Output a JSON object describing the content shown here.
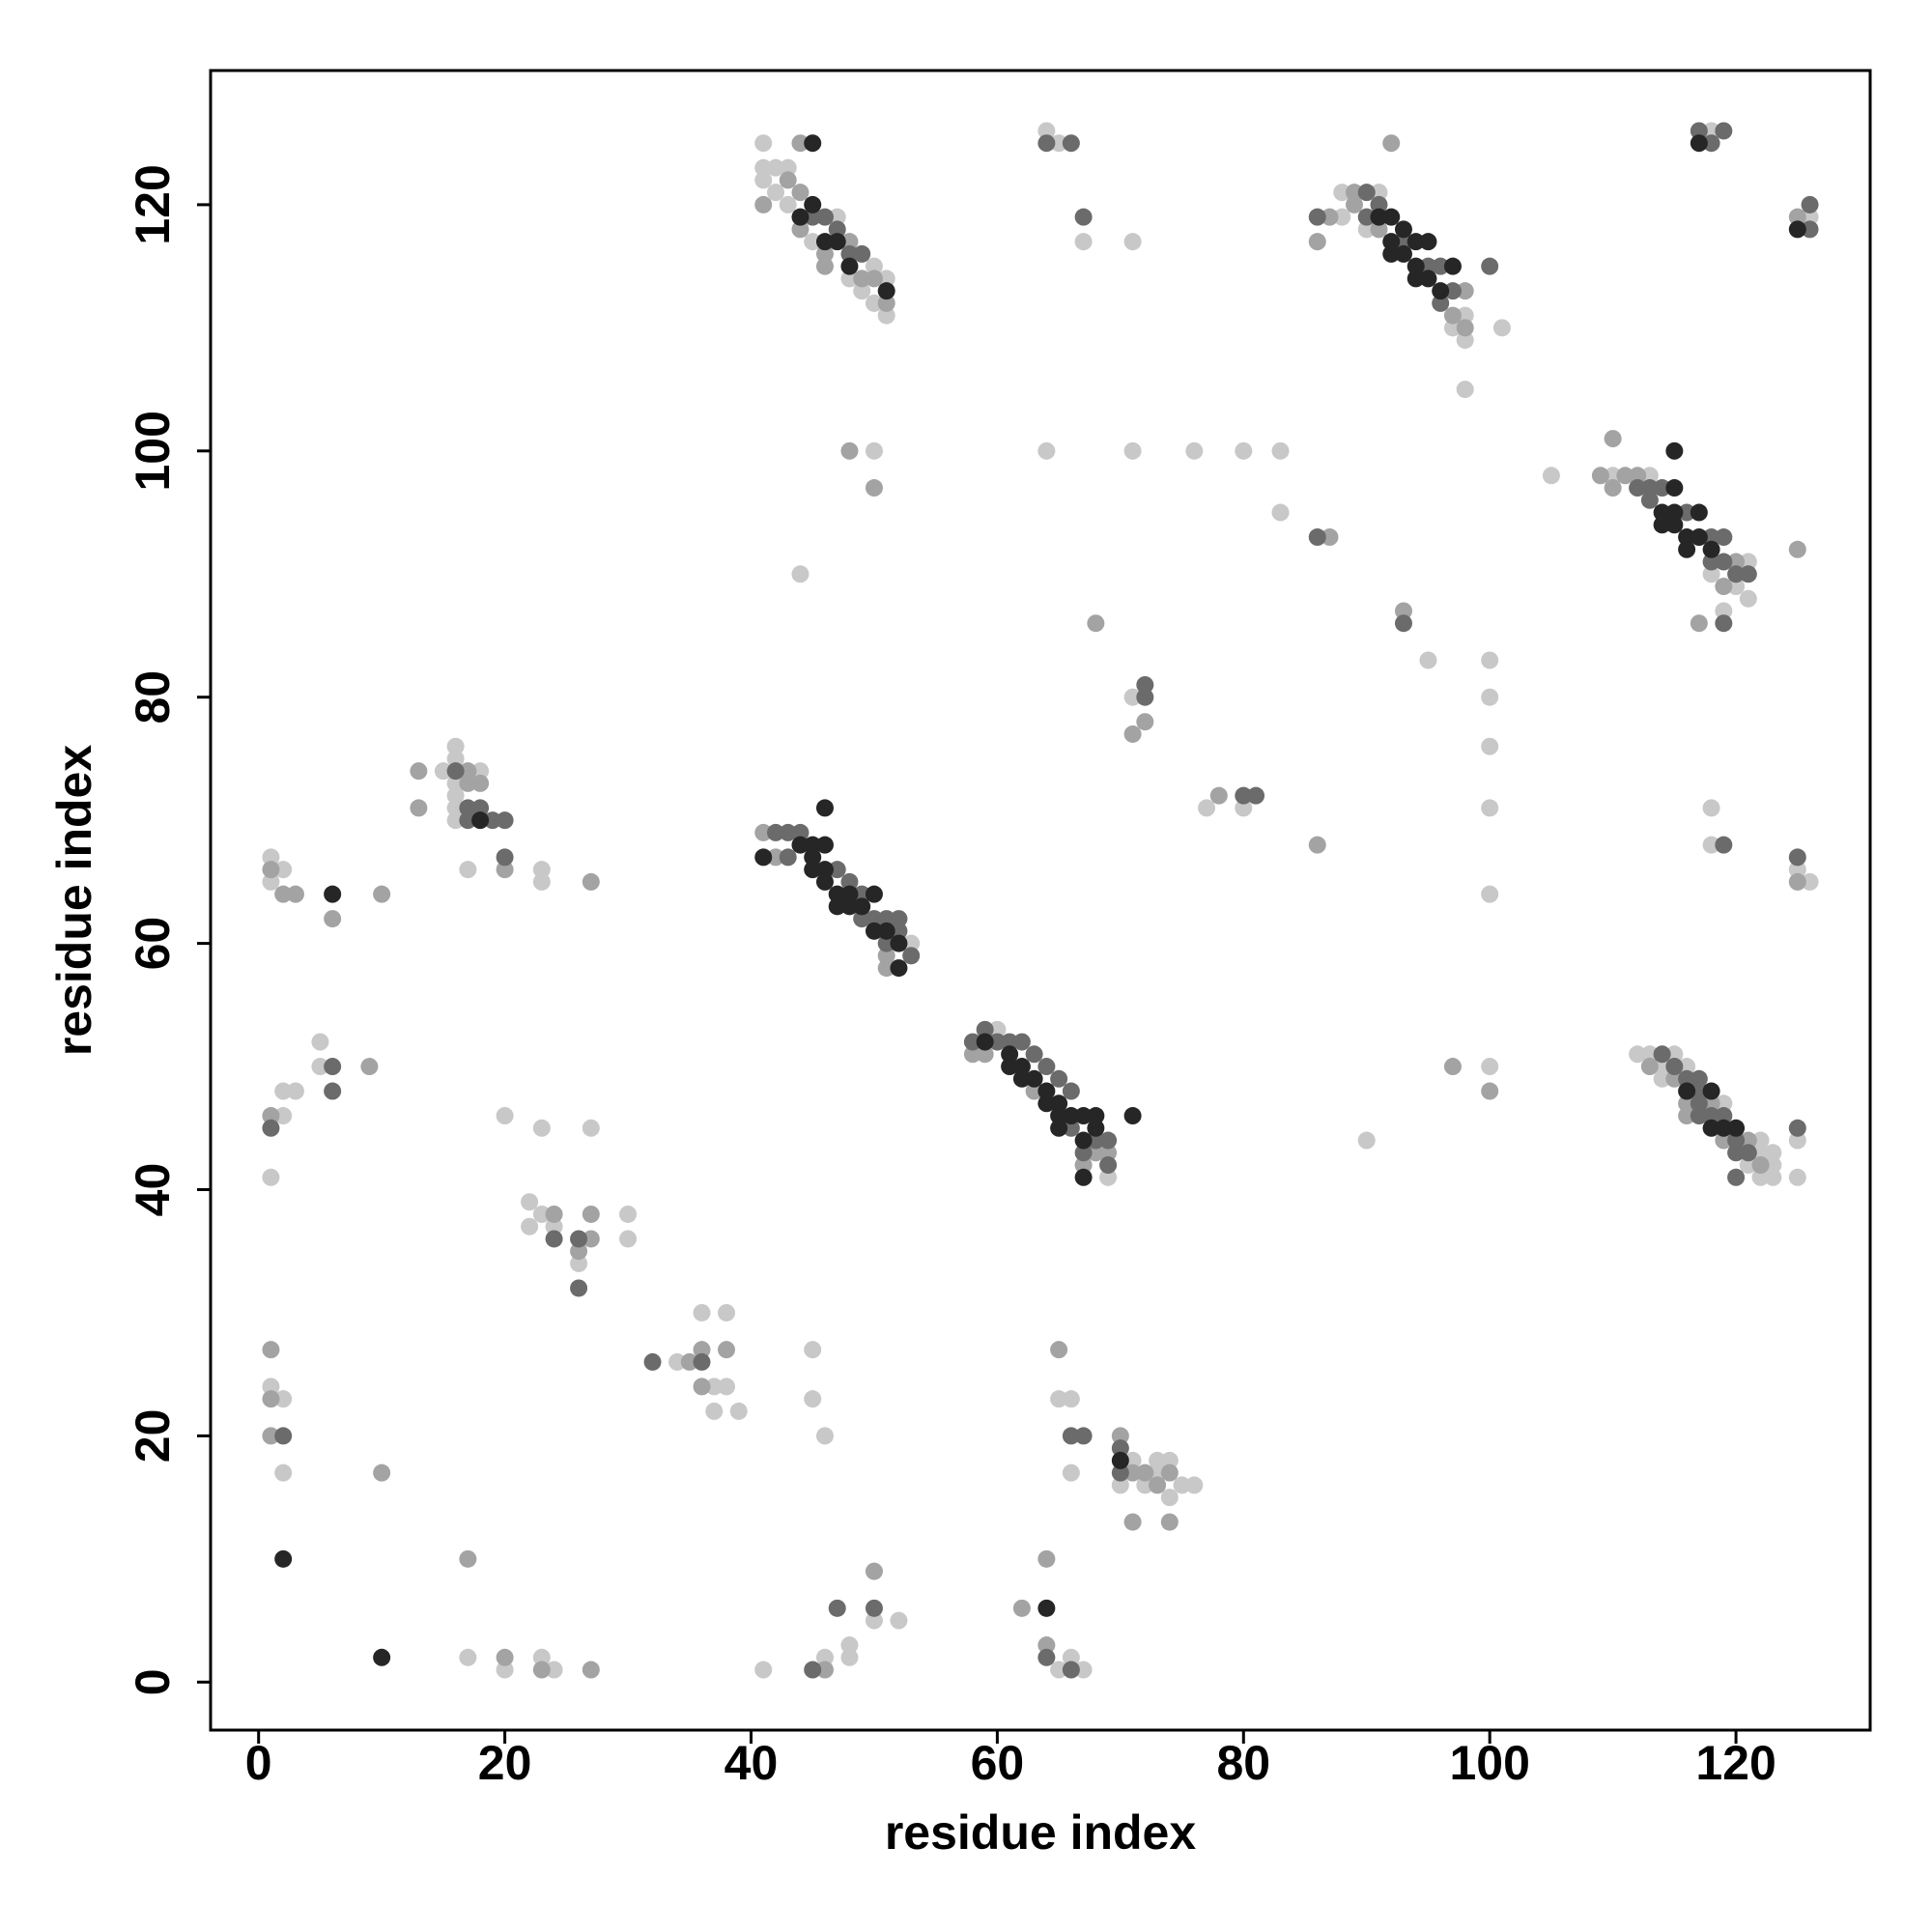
{
  "chart_data": {
    "type": "scatter",
    "xlabel": "residue index",
    "ylabel": "residue index",
    "xlim": [
      -3.9,
      130.9
    ],
    "ylim": [
      -3.9,
      130.9
    ],
    "xticks": [
      0,
      20,
      40,
      60,
      80,
      100,
      120
    ],
    "yticks": [
      0,
      20,
      40,
      60,
      80,
      100,
      120
    ],
    "grid": false,
    "series": [
      {
        "color": "#c8c8c8",
        "x": [
          17,
          20,
          23,
          24,
          41,
          46,
          48,
          48,
          50,
          52,
          65,
          66,
          67,
          1,
          2,
          2,
          34,
          36,
          37,
          38,
          37,
          38,
          39,
          45,
          45,
          46,
          65,
          66,
          66,
          70,
          71,
          72,
          73,
          73,
          74,
          74,
          75,
          76,
          22,
          22,
          23,
          24,
          26,
          30,
          30,
          1,
          2,
          2,
          3,
          5,
          5,
          20,
          23,
          27,
          60,
          69,
          53,
          1,
          1,
          2,
          17,
          23,
          23,
          15,
          16,
          16,
          16,
          16,
          16,
          16,
          18,
          71,
          77,
          80,
          95,
          100,
          100,
          100,
          100,
          100,
          100,
          90,
          44,
          50,
          64,
          71,
          76,
          80,
          83,
          83,
          105,
          118,
          118,
          125,
          126,
          125,
          125,
          112,
          113,
          114,
          114,
          115,
          116,
          119,
          121,
          122,
          122,
          122,
          123,
          123,
          123,
          110,
          113,
          118,
          119,
          120,
          121,
          121,
          88,
          88,
          90,
          91,
          97,
          98,
          98,
          98,
          101,
          41,
          41,
          41,
          42,
          42,
          43,
          43,
          45,
          47,
          48,
          49,
          50,
          50,
          51,
          51,
          64,
          65,
          67,
          71,
          118,
          126
        ],
        "values": [
          2,
          1,
          2,
          1,
          1,
          2,
          2,
          3,
          5,
          5,
          1,
          2,
          1,
          24,
          23,
          17,
          26,
          30,
          24,
          24,
          22,
          30,
          22,
          27,
          23,
          20,
          23,
          23,
          17,
          16,
          18,
          16,
          18,
          17,
          18,
          15,
          16,
          16,
          39,
          37,
          38,
          37,
          34,
          38,
          36,
          41,
          48,
          46,
          48,
          52,
          50,
          46,
          45,
          45,
          53,
          41,
          60,
          67,
          65,
          66,
          66,
          66,
          65,
          74,
          76,
          75,
          73,
          72,
          71,
          70,
          74,
          80,
          71,
          71,
          83,
          83,
          80,
          76,
          71,
          64,
          50,
          44,
          90,
          100,
          100,
          100,
          100,
          100,
          100,
          95,
          98,
          71,
          68,
          66,
          65,
          44,
          41,
          51,
          51,
          50,
          49,
          51,
          50,
          47,
          42,
          44,
          43,
          41,
          43,
          42,
          41,
          98,
          98,
          90,
          87,
          89,
          91,
          88,
          121,
          119,
          118,
          121,
          110,
          111,
          109,
          105,
          110,
          125,
          123,
          122,
          123,
          121,
          123,
          120,
          117,
          119,
          114,
          113,
          115,
          112,
          114,
          111,
          126,
          125,
          117,
          117,
          126,
          119
        ]
      },
      {
        "color": "#a3a3a3",
        "x": [
          20,
          23,
          27,
          46,
          50,
          62,
          64,
          64,
          17,
          1,
          1,
          1,
          10,
          35,
          36,
          36,
          38,
          65,
          70,
          71,
          72,
          73,
          74,
          71,
          74,
          24,
          26,
          27,
          27,
          1,
          9,
          58,
          59,
          63,
          67,
          68,
          69,
          41,
          42,
          51,
          51,
          1,
          2,
          3,
          6,
          10,
          20,
          27,
          13,
          13,
          17,
          17,
          18,
          71,
          72,
          78,
          68,
          86,
          93,
          97,
          100,
          48,
          50,
          87,
          125,
          125,
          113,
          115,
          116,
          116,
          118,
          119,
          121,
          122,
          109,
          110,
          110,
          111,
          112,
          117,
          119,
          120,
          86,
          87,
          89,
          89,
          91,
          97,
          98,
          98,
          92,
          41,
          43,
          44,
          44,
          44,
          46,
          46,
          48,
          49,
          50,
          51,
          125
        ],
        "values": [
          2,
          1,
          1,
          1,
          9,
          6,
          10,
          3,
          10,
          27,
          23,
          20,
          17,
          26,
          27,
          24,
          27,
          27,
          20,
          17,
          17,
          16,
          17,
          13,
          13,
          38,
          35,
          38,
          36,
          46,
          50,
          51,
          51,
          48,
          42,
          43,
          43,
          69,
          67,
          59,
          58,
          66,
          64,
          64,
          62,
          64,
          66,
          65,
          74,
          71,
          74,
          73,
          73,
          77,
          78,
          72,
          86,
          68,
          87,
          50,
          48,
          100,
          97,
          93,
          65,
          92,
          50,
          49,
          47,
          46,
          47,
          44,
          44,
          42,
          98,
          101,
          97,
          98,
          98,
          86,
          89,
          91,
          117,
          119,
          121,
          120,
          118,
          111,
          113,
          110,
          125,
          120,
          122,
          125,
          121,
          118,
          116,
          115,
          117,
          114,
          114,
          112,
          119
        ]
      },
      {
        "color": "#6b6b6b",
        "x": [
          45,
          47,
          50,
          64,
          66,
          2,
          32,
          36,
          66,
          67,
          70,
          70,
          24,
          26,
          26,
          1,
          6,
          6,
          58,
          59,
          60,
          61,
          62,
          63,
          64,
          65,
          66,
          66,
          67,
          68,
          69,
          69,
          42,
          43,
          43,
          44,
          47,
          48,
          49,
          49,
          50,
          51,
          51,
          52,
          52,
          53,
          20,
          16,
          17,
          17,
          18,
          19,
          20,
          72,
          72,
          80,
          81,
          93,
          86,
          119,
          125,
          125,
          114,
          115,
          116,
          117,
          117,
          117,
          117,
          118,
          119,
          120,
          120,
          120,
          121,
          112,
          113,
          113,
          114,
          116,
          118,
          118,
          119,
          119,
          119,
          120,
          121,
          86,
          90,
          90,
          91,
          93,
          95,
          96,
          96,
          97,
          100,
          45,
          46,
          47,
          48,
          49,
          64,
          66,
          67,
          117,
          118,
          119,
          126,
          126
        ],
        "values": [
          1,
          6,
          6,
          2,
          1,
          20,
          26,
          26,
          20,
          20,
          19,
          17,
          36,
          36,
          32,
          45,
          50,
          48,
          52,
          53,
          52,
          52,
          52,
          51,
          50,
          49,
          48,
          45,
          43,
          44,
          44,
          42,
          69,
          69,
          67,
          69,
          66,
          65,
          64,
          62,
          62,
          62,
          60,
          62,
          61,
          59,
          67,
          74,
          71,
          70,
          71,
          70,
          70,
          81,
          80,
          72,
          72,
          86,
          93,
          68,
          67,
          45,
          51,
          50,
          49,
          49,
          48,
          47,
          46,
          46,
          46,
          44,
          43,
          41,
          43,
          97,
          97,
          96,
          97,
          95,
          93,
          91,
          93,
          91,
          86,
          90,
          90,
          119,
          121,
          119,
          120,
          117,
          115,
          115,
          112,
          113,
          115,
          119,
          119,
          118,
          116,
          116,
          125,
          125,
          119,
          126,
          125,
          126,
          120,
          118
        ]
      },
      {
        "color": "#262626",
        "x": [
          10,
          64,
          2,
          70,
          59,
          61,
          61,
          62,
          62,
          63,
          64,
          64,
          65,
          65,
          65,
          66,
          67,
          67,
          67,
          68,
          68,
          71,
          41,
          44,
          45,
          45,
          45,
          46,
          46,
          46,
          46,
          47,
          47,
          48,
          48,
          49,
          50,
          50,
          51,
          52,
          52,
          6,
          18,
          116,
          118,
          118,
          119,
          120,
          114,
          114,
          115,
          115,
          115,
          115,
          116,
          116,
          117,
          117,
          118,
          91,
          92,
          92,
          92,
          93,
          93,
          94,
          94,
          94,
          95,
          95,
          96,
          97,
          44,
          45,
          45,
          46,
          47,
          48,
          51,
          117,
          125
        ],
        "values": [
          2,
          6,
          10,
          18,
          52,
          51,
          50,
          50,
          49,
          49,
          48,
          47,
          47,
          46,
          45,
          46,
          46,
          44,
          41,
          46,
          45,
          46,
          67,
          68,
          68,
          67,
          66,
          71,
          68,
          66,
          65,
          64,
          63,
          64,
          63,
          63,
          64,
          61,
          61,
          60,
          58,
          64,
          70,
          48,
          48,
          45,
          45,
          45,
          95,
          94,
          100,
          97,
          95,
          94,
          93,
          92,
          95,
          93,
          92,
          119,
          119,
          117,
          116,
          118,
          116,
          117,
          115,
          114,
          117,
          114,
          113,
          115,
          119,
          125,
          120,
          117,
          117,
          115,
          113,
          125,
          118
        ]
      }
    ]
  }
}
